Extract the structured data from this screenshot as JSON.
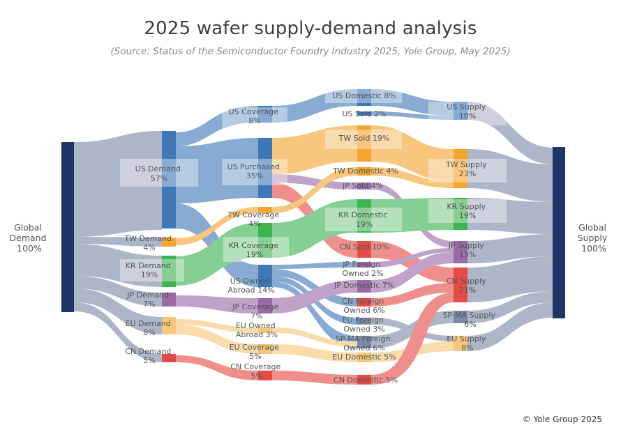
{
  "title": "2025 wafer supply-demand analysis",
  "subtitle": "(Source: Status of the Semiconductor Foundry Industry 2025, Yole Group, May 2025)",
  "copyright": "© Yole Group 2025",
  "colors": {
    "navy": "#1f3566",
    "grey_flow": "#7b88a8",
    "us": "#3f78b8",
    "tw": "#f4a42f",
    "kr": "#3db251",
    "jp": "#9a6aa7",
    "eu": "#f4c77a",
    "cn": "#e44c46"
  },
  "nodes": {
    "global_demand": {
      "line1": "Global",
      "line2": "Demand",
      "line3": "100%"
    },
    "global_supply": {
      "line1": "Global",
      "line2": "Supply",
      "line3": "100%"
    },
    "us_demand": {
      "line1": "US Demand",
      "line2": "57%"
    },
    "tw_demand": {
      "line1": "TW Demand",
      "line2": "4%"
    },
    "kr_demand": {
      "line1": "KR Demand",
      "line2": "19%"
    },
    "jp_demand": {
      "line1": "JP Demand",
      "line2": "7%"
    },
    "eu_demand": {
      "line1": "EU Demand",
      "line2": "8%"
    },
    "cn_demand": {
      "line1": "CN Demand",
      "line2": "5%"
    },
    "us_coverage": {
      "line1": "US Coverage",
      "line2": "8%"
    },
    "us_purchased": {
      "line1": "US Purchased",
      "line2": "35%"
    },
    "tw_coverage": {
      "line1": "TW Coverage",
      "line2": "4%"
    },
    "kr_coverage": {
      "line1": "KR Coverage",
      "line2": "19%"
    },
    "us_owned_abroad": {
      "line1": "US Owned",
      "line2": "Abroad 14%"
    },
    "jp_coverage": {
      "line1": "JP Coverage",
      "line2": "7%"
    },
    "eu_owned_abroad": {
      "line1": "EU Owned",
      "line2": "Abroad 3%"
    },
    "eu_coverage": {
      "line1": "EU Coverage",
      "line2": "5%"
    },
    "cn_coverage": {
      "line1": "CN Coverage",
      "line2": "5%"
    },
    "us_domestic": {
      "line1": "US Domestic 8%"
    },
    "us_sold": {
      "line1": "US Sold 2%"
    },
    "tw_sold": {
      "line1": "TW Sold 19%"
    },
    "tw_domestic": {
      "line1": "TW Domestic 4%"
    },
    "jp_sold": {
      "line1": "JP Sold 4%"
    },
    "kr_domestic": {
      "line1": "KR Domestic",
      "line2": "19%"
    },
    "cn_sold": {
      "line1": "CN Sold 10%"
    },
    "jp_foreign_owned": {
      "line1": "JP Foreign",
      "line2": "Owned 2%"
    },
    "jp_domestic": {
      "line1": "JP Domestic 7%"
    },
    "cn_foreign_owned": {
      "line1": "CN Foreign",
      "line2": "Owned 6%"
    },
    "eu_foreign_owned": {
      "line1": "EU Foreign",
      "line2": "Owned 3%"
    },
    "spma_foreign_owned": {
      "line1": "SP-MA Foreign",
      "line2": "Owned 6%"
    },
    "eu_domestic": {
      "line1": "EU Domestic 5%"
    },
    "cn_domestic": {
      "line1": "CN Domestic 5%"
    },
    "us_supply": {
      "line1": "US Supply",
      "line2": "10%"
    },
    "tw_supply": {
      "line1": "TW Supply",
      "line2": "23%"
    },
    "kr_supply": {
      "line1": "KR Supply",
      "line2": "19%"
    },
    "jp_supply": {
      "line1": "JP Supply",
      "line2": "13%"
    },
    "cn_supply": {
      "line1": "CN Supply",
      "line2": "21%"
    },
    "spma_supply": {
      "line1": "SP-MA Supply",
      "line2": "6%"
    },
    "eu_supply": {
      "line1": "EU Supply",
      "line2": "8%"
    }
  }
}
